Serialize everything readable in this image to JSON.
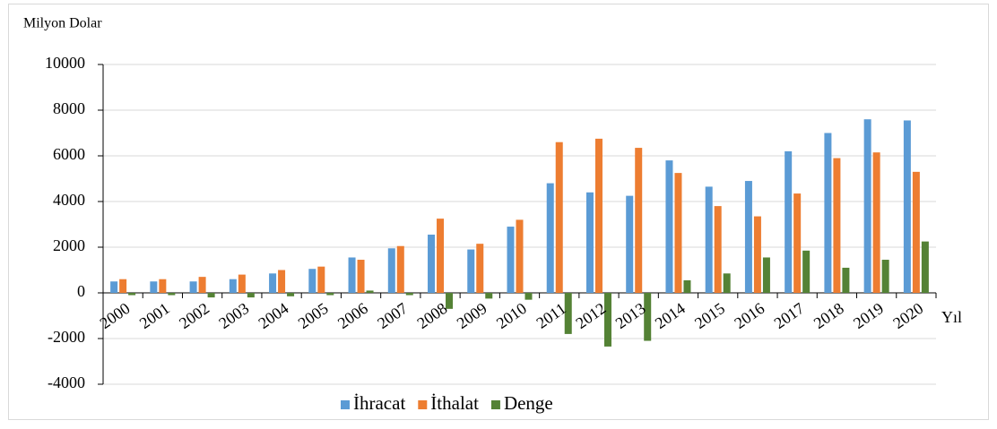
{
  "chart_data": {
    "type": "bar",
    "y_label": "Milyon Dolar",
    "x_label": "Yıl",
    "categories": [
      "2000",
      "2001",
      "2002",
      "2003",
      "2004",
      "2005",
      "2006",
      "2007",
      "2008",
      "2009",
      "2010",
      "2011",
      "2012",
      "2013",
      "2014",
      "2015",
      "2016",
      "2017",
      "2018",
      "2019",
      "2020"
    ],
    "series": [
      {
        "name": "İhracat",
        "color": "#5b9bd5",
        "values": [
          500,
          500,
          500,
          600,
          850,
          1050,
          1550,
          1950,
          2550,
          1900,
          2900,
          4800,
          4400,
          4250,
          5800,
          4650,
          4900,
          6200,
          7000,
          7600,
          7550
        ]
      },
      {
        "name": "İthalat",
        "color": "#ed7d31",
        "values": [
          600,
          600,
          700,
          800,
          1000,
          1150,
          1450,
          2050,
          3250,
          2150,
          3200,
          6600,
          6750,
          6350,
          5250,
          3800,
          3350,
          4350,
          5900,
          6150,
          5300
        ]
      },
      {
        "name": "Denge",
        "color": "#548235",
        "values": [
          -100,
          -100,
          -200,
          -200,
          -150,
          -100,
          100,
          -100,
          -700,
          -250,
          -300,
          -1800,
          -2350,
          -2100,
          550,
          850,
          1550,
          1850,
          1100,
          1450,
          2250
        ]
      }
    ],
    "ylim": [
      -4000,
      10000
    ],
    "yticks": [
      -4000,
      -2000,
      0,
      2000,
      4000,
      6000,
      8000,
      10000
    ],
    "grid": true,
    "legend": "bottom"
  }
}
